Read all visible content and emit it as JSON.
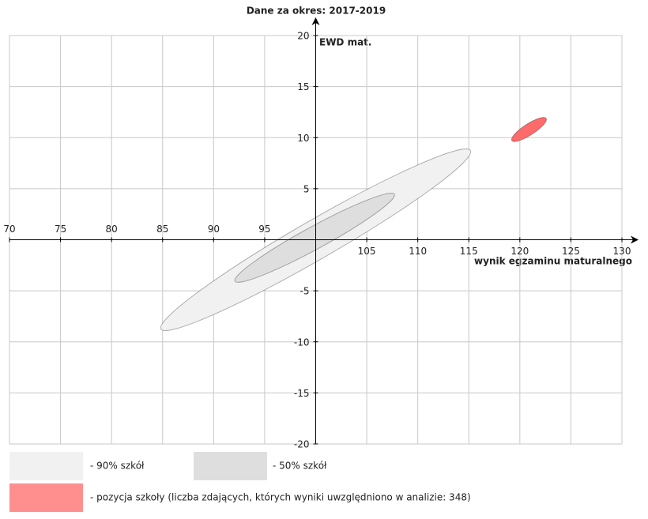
{
  "chart_data": {
    "type": "ellipse",
    "title": "Dane za okres: 2017-2019",
    "x_label": "wynik egzaminu maturalnego",
    "y_label": "EWD mat.",
    "xlim": [
      70,
      130
    ],
    "ylim": [
      -20,
      20
    ],
    "xticks": [
      70,
      75,
      80,
      85,
      90,
      95,
      105,
      110,
      115,
      120,
      125,
      130
    ],
    "yticks": [
      -20,
      -15,
      -10,
      -5,
      5,
      10,
      15,
      20
    ],
    "x_axis_at": 0,
    "y_axis_at": 100,
    "grid": true,
    "series": [
      {
        "name": "- 90% szkół",
        "color": "#f1f1f1",
        "cx": 100,
        "cy": 0,
        "semi_major": 17.5,
        "semi_minor": 1.9,
        "angle": 30
      },
      {
        "name": "- 50% szkół",
        "color": "#dedede",
        "cx": 99.9,
        "cy": 0.2,
        "semi_major": 8.9,
        "semi_minor": 1.1,
        "angle": 28.6
      },
      {
        "name": "- pozycja szkoły (liczba zdających, których wyniki uwzględniono w analizie: 348)",
        "color": "#ff6a6a",
        "cx": 120.9,
        "cy": 10.8,
        "semi_major": 2.0,
        "semi_minor": 0.55,
        "angle": 33
      }
    ]
  }
}
